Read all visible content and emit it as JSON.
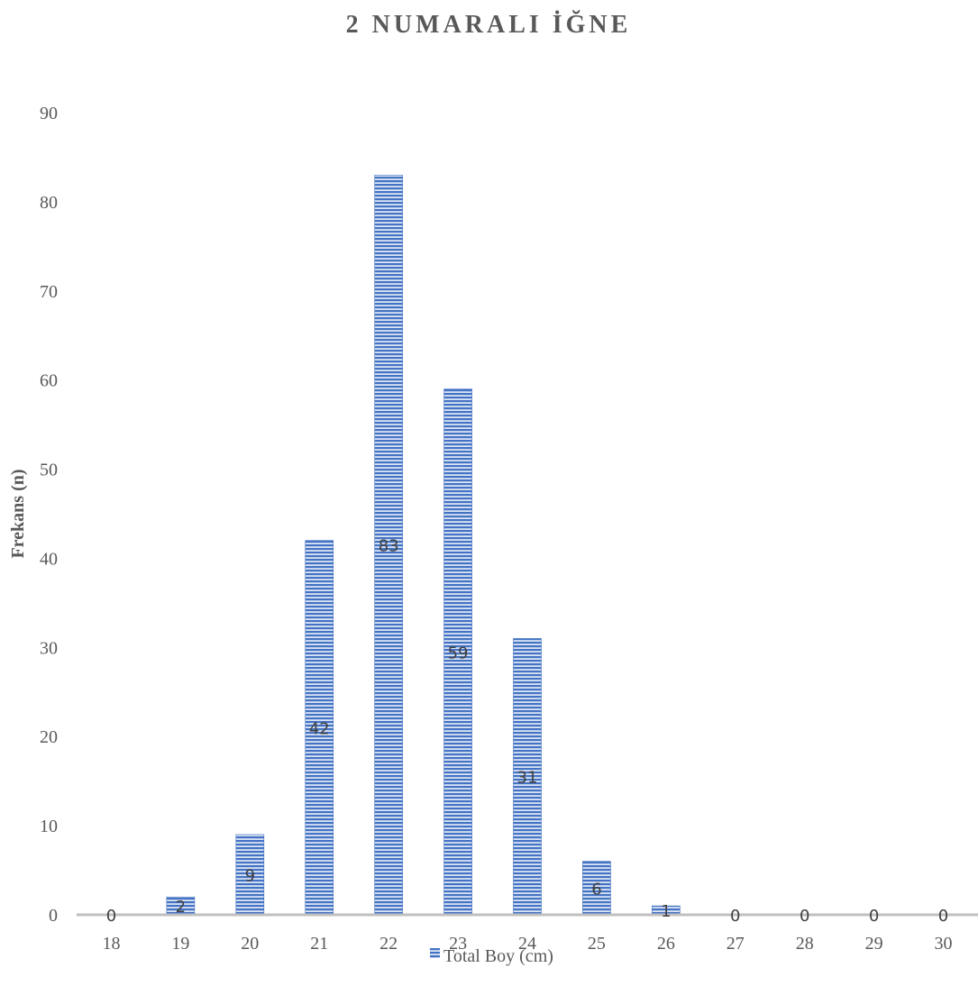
{
  "chart_data": {
    "type": "bar",
    "title": "2 NUMARALI İĞNE",
    "xlabel": "",
    "ylabel": "Frekans (n)",
    "categories": [
      "18",
      "19",
      "20",
      "21",
      "22",
      "23",
      "24",
      "25",
      "26",
      "27",
      "28",
      "29",
      "30"
    ],
    "series": [
      {
        "name": "Total Boy (cm)",
        "values": [
          0,
          2,
          9,
          42,
          83,
          59,
          31,
          6,
          1,
          0,
          0,
          0,
          0
        ]
      }
    ],
    "data_labels": [
      "0",
      "2",
      "9",
      "42",
      "83",
      "59",
      "31",
      "6",
      "1",
      "0",
      "0",
      "0",
      "0"
    ],
    "ylim": [
      0,
      90
    ],
    "yticks": [
      0,
      10,
      20,
      30,
      40,
      50,
      60,
      70,
      80,
      90
    ],
    "grid": false,
    "legend_position": "bottom",
    "bar_color": "#4472C4",
    "bar_pattern": "horizontal-stripes"
  }
}
